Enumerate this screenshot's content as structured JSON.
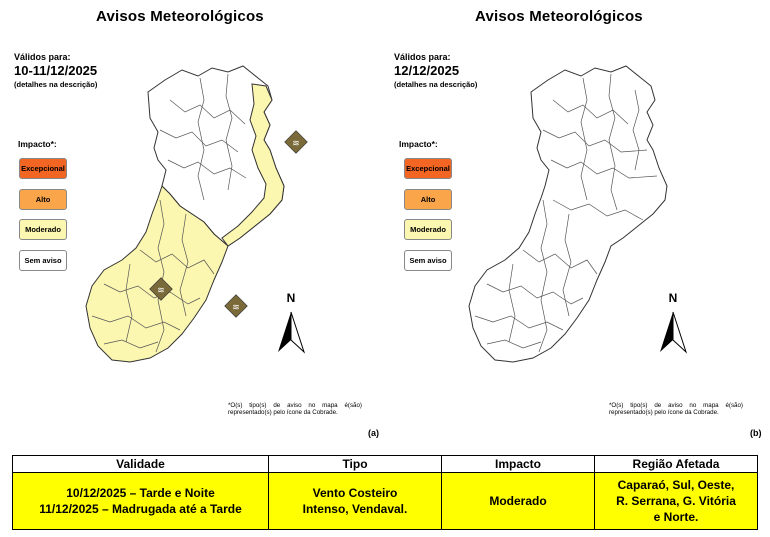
{
  "panels": [
    {
      "title": "Avisos Meteorológicos",
      "valid_label": "Válidos para:",
      "valid_date": "10-11/12/2025",
      "details_note": "(detalhes na descrição)",
      "impact_title": "Impacto*:",
      "legend": [
        "Excepcional",
        "Alto",
        "Moderado",
        "Sem aviso"
      ],
      "north": "N",
      "footnote": "*O(s) tipo(s) de aviso no mapa é(são) representado(s) pelo ícone da Cobrade.",
      "letter": "(a)"
    },
    {
      "title": "Avisos Meteorológicos",
      "valid_label": "Válidos para:",
      "valid_date": "12/12/2025",
      "details_note": "(detalhes na descrição)",
      "impact_title": "Impacto*:",
      "legend": [
        "Excepcional",
        "Alto",
        "Moderado",
        "Sem aviso"
      ],
      "north": "N",
      "footnote": "*O(s) tipo(s) de aviso no mapa é(são) representado(s) pelo ícone da Cobrade.",
      "letter": "(b)"
    }
  ],
  "legend_colors": {
    "Excepcional": "#f26522",
    "Alto": "#faa54a",
    "Moderado": "#fbf6b0",
    "Sem aviso": "#ffffff"
  },
  "table": {
    "headers": [
      "Validade",
      "Tipo",
      "Impacto",
      "Região Afetada"
    ],
    "row": {
      "validade": [
        "10/12/2025 – Tarde e Noite",
        "11/12/2025 – Madrugada até a Tarde"
      ],
      "tipo": [
        "Vento Costeiro",
        "Intenso, Vendaval."
      ],
      "impacto": "Moderado",
      "regiao": [
        "Caparaó, Sul, Oeste,",
        "R. Serrana, G. Vitória",
        "e Norte."
      ]
    }
  },
  "icons": [
    "wind-warning-icon"
  ]
}
